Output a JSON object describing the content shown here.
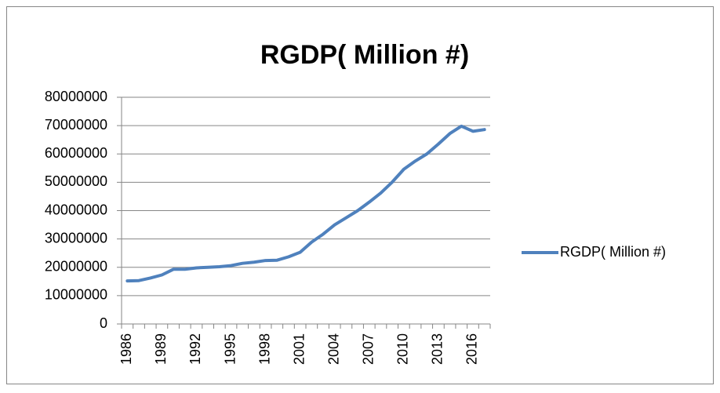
{
  "chart_data": {
    "type": "line",
    "title": "RGDP( Million #)",
    "categories": [
      "1986",
      null,
      null,
      "1989",
      null,
      null,
      "1992",
      null,
      null,
      "1995",
      null,
      null,
      "1998",
      null,
      null,
      "2001",
      null,
      null,
      "2004",
      null,
      null,
      "2007",
      null,
      null,
      "2010",
      null,
      null,
      "2013",
      null,
      null,
      "2016",
      null
    ],
    "series": [
      {
        "name": "RGDP( Million #)",
        "color": "#4f81bd",
        "values": [
          15200000,
          15300000,
          16200000,
          17300000,
          19300000,
          19300000,
          19800000,
          20000000,
          20200000,
          20600000,
          21400000,
          21800000,
          22400000,
          22500000,
          23700000,
          25300000,
          28900000,
          31700000,
          35000000,
          37500000,
          40000000,
          43000000,
          46200000,
          50100000,
          54600000,
          57500000,
          60000000,
          63500000,
          67200000,
          69800000,
          68000000,
          68600000
        ]
      }
    ],
    "ylim": [
      0,
      80000000
    ],
    "yticks": [
      0,
      10000000,
      20000000,
      30000000,
      40000000,
      50000000,
      60000000,
      70000000,
      80000000
    ],
    "grid": true,
    "legend": "right"
  }
}
